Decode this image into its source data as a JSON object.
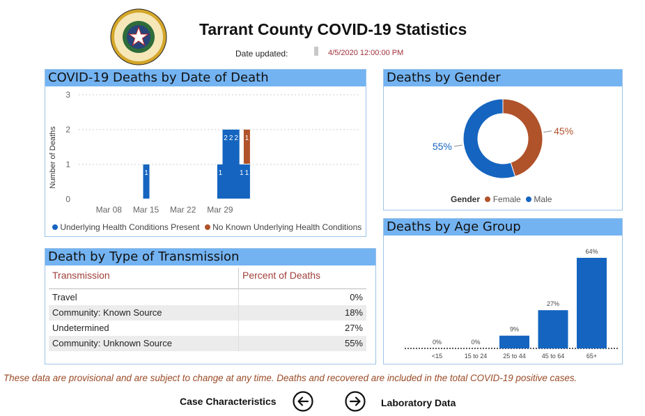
{
  "header": {
    "title": "Tarrant County COVID-19 Statistics",
    "date_label": "Date updated:",
    "date_value": "4/5/2020 12:00:00 PM",
    "seal_text": "TARRANT COUNTY TEXAS"
  },
  "colors": {
    "male": "#1565c0",
    "female": "#b0522a",
    "accent_date": "#a0303a",
    "title_bar": "#73b3f2"
  },
  "deaths_by_date": {
    "title": "COVID-19 Deaths by Date of Death",
    "chart_data": {
      "type": "bar",
      "ylabel": "Number of Deaths",
      "ylim": [
        0,
        3
      ],
      "yticks": [
        "0",
        "1",
        "2",
        "3"
      ],
      "xticks": [
        "Mar 08",
        "Mar 15",
        "Mar 22",
        "Mar 29"
      ],
      "series": [
        {
          "name": "Underlying Health Conditions Present",
          "points": [
            {
              "x": "Mar 15",
              "y": 1
            },
            {
              "x": "Mar 29",
              "y": 1
            },
            {
              "x": "Mar 30",
              "y": 2
            },
            {
              "x": "Mar 31",
              "y": 2
            },
            {
              "x": "Apr 01",
              "y": 2
            },
            {
              "x": "Apr 02",
              "y": 1
            },
            {
              "x": "Apr 03",
              "y": 1
            }
          ]
        },
        {
          "name": "No Known Underlying Health Conditions",
          "points": [
            {
              "x": "Apr 03",
              "y": 1
            }
          ]
        }
      ]
    },
    "legend": [
      "Underlying Health Conditions Present",
      "No Known Underlying Health Conditions"
    ]
  },
  "deaths_by_gender": {
    "title": "Deaths by Gender",
    "chart_data": {
      "type": "pie",
      "categories": [
        "Female",
        "Male"
      ],
      "values": [
        45,
        55
      ],
      "labels": [
        "45%",
        "55%"
      ]
    },
    "legend_title": "Gender",
    "legend": [
      "Female",
      "Male"
    ]
  },
  "transmission": {
    "title": "Death by Type of Transmission",
    "headers": [
      "Transmission",
      "Percent of Deaths"
    ],
    "rows": [
      {
        "type": "Travel",
        "pct": "0%"
      },
      {
        "type": "Community: Known Source",
        "pct": "18%"
      },
      {
        "type": "Undetermined",
        "pct": "27%"
      },
      {
        "type": "Community: Unknown Source",
        "pct": "55%"
      }
    ]
  },
  "deaths_by_age": {
    "title": "Deaths by Age Group",
    "chart_data": {
      "type": "bar",
      "categories": [
        "<15",
        "15 to 24",
        "25 to 44",
        "45 to 64",
        "65+"
      ],
      "values": [
        0,
        0,
        9,
        27,
        64
      ],
      "labels": [
        "0%",
        "0%",
        "9%",
        "27%",
        "64%"
      ]
    }
  },
  "footer": {
    "disclaimer": "These data are provisional and are subject to change at any time. Deaths and recovered are included in the total COVID-19 positive cases.",
    "prev_label": "Case Characteristics",
    "next_label": "Laboratory Data"
  }
}
